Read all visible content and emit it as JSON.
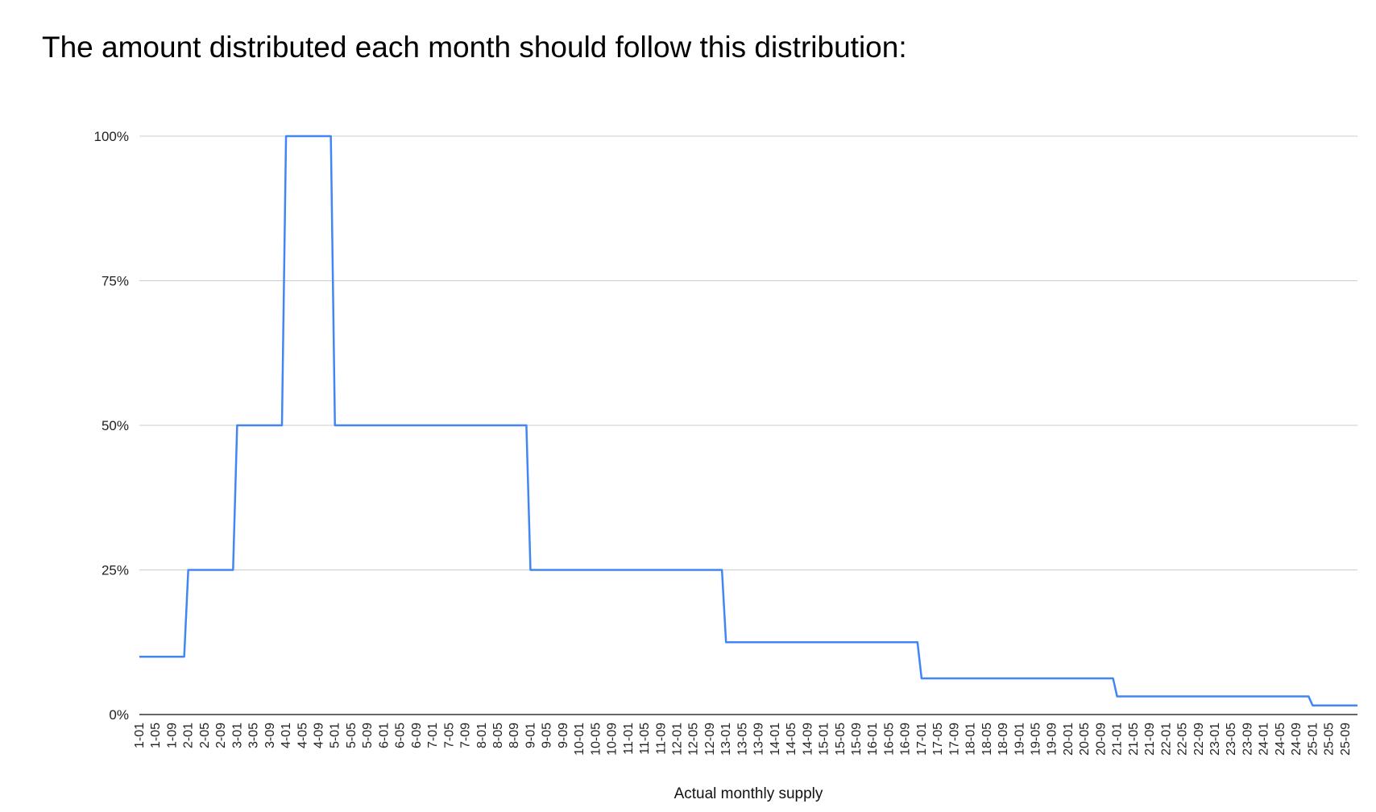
{
  "header": {
    "title": "The amount distributed each month should follow this distribution:"
  },
  "chart_data": {
    "type": "line",
    "title": "",
    "xlabel": "Actual monthly supply",
    "ylabel": "",
    "ylim": [
      0,
      1
    ],
    "y_ticks": [
      0,
      0.25,
      0.5,
      0.75,
      1
    ],
    "y_tick_labels": [
      "0%",
      "25%",
      "50%",
      "75%",
      "100%"
    ],
    "grid": true,
    "legend": "none",
    "line_color": "#4285f4",
    "x_categories": [
      "1-01",
      "1-02",
      "1-03",
      "1-04",
      "1-05",
      "1-06",
      "1-07",
      "1-08",
      "1-09",
      "1-10",
      "1-11",
      "1-12",
      "2-01",
      "2-02",
      "2-03",
      "2-04",
      "2-05",
      "2-06",
      "2-07",
      "2-08",
      "2-09",
      "2-10",
      "2-11",
      "2-12",
      "3-01",
      "3-02",
      "3-03",
      "3-04",
      "3-05",
      "3-06",
      "3-07",
      "3-08",
      "3-09",
      "3-10",
      "3-11",
      "3-12",
      "4-01",
      "4-02",
      "4-03",
      "4-04",
      "4-05",
      "4-06",
      "4-07",
      "4-08",
      "4-09",
      "4-10",
      "4-11",
      "4-12",
      "5-01",
      "5-02",
      "5-03",
      "5-04",
      "5-05",
      "5-06",
      "5-07",
      "5-08",
      "5-09",
      "5-10",
      "5-11",
      "5-12",
      "6-01",
      "6-02",
      "6-03",
      "6-04",
      "6-05",
      "6-06",
      "6-07",
      "6-08",
      "6-09",
      "6-10",
      "6-11",
      "6-12",
      "7-01",
      "7-02",
      "7-03",
      "7-04",
      "7-05",
      "7-06",
      "7-07",
      "7-08",
      "7-09",
      "7-10",
      "7-11",
      "7-12",
      "8-01",
      "8-02",
      "8-03",
      "8-04",
      "8-05",
      "8-06",
      "8-07",
      "8-08",
      "8-09",
      "8-10",
      "8-11",
      "8-12",
      "9-01",
      "9-02",
      "9-03",
      "9-04",
      "9-05",
      "9-06",
      "9-07",
      "9-08",
      "9-09",
      "9-10",
      "9-11",
      "9-12",
      "10-01",
      "10-02",
      "10-03",
      "10-04",
      "10-05",
      "10-06",
      "10-07",
      "10-08",
      "10-09",
      "10-10",
      "10-11",
      "10-12",
      "11-01",
      "11-02",
      "11-03",
      "11-04",
      "11-05",
      "11-06",
      "11-07",
      "11-08",
      "11-09",
      "11-10",
      "11-11",
      "11-12",
      "12-01",
      "12-02",
      "12-03",
      "12-04",
      "12-05",
      "12-06",
      "12-07",
      "12-08",
      "12-09",
      "12-10",
      "12-11",
      "12-12",
      "13-01",
      "13-02",
      "13-03",
      "13-04",
      "13-05",
      "13-06",
      "13-07",
      "13-08",
      "13-09",
      "13-10",
      "13-11",
      "13-12",
      "14-01",
      "14-02",
      "14-03",
      "14-04",
      "14-05",
      "14-06",
      "14-07",
      "14-08",
      "14-09",
      "14-10",
      "14-11",
      "14-12",
      "15-01",
      "15-02",
      "15-03",
      "15-04",
      "15-05",
      "15-06",
      "15-07",
      "15-08",
      "15-09",
      "15-10",
      "15-11",
      "15-12",
      "16-01",
      "16-02",
      "16-03",
      "16-04",
      "16-05",
      "16-06",
      "16-07",
      "16-08",
      "16-09",
      "16-10",
      "16-11",
      "16-12",
      "17-01",
      "17-02",
      "17-03",
      "17-04",
      "17-05",
      "17-06",
      "17-07",
      "17-08",
      "17-09",
      "17-10",
      "17-11",
      "17-12",
      "18-01",
      "18-02",
      "18-03",
      "18-04",
      "18-05",
      "18-06",
      "18-07",
      "18-08",
      "18-09",
      "18-10",
      "18-11",
      "18-12",
      "19-01",
      "19-02",
      "19-03",
      "19-04",
      "19-05",
      "19-06",
      "19-07",
      "19-08",
      "19-09",
      "19-10",
      "19-11",
      "19-12",
      "20-01",
      "20-02",
      "20-03",
      "20-04",
      "20-05",
      "20-06",
      "20-07",
      "20-08",
      "20-09",
      "20-10",
      "20-11",
      "20-12",
      "21-01",
      "21-02",
      "21-03",
      "21-04",
      "21-05",
      "21-06",
      "21-07",
      "21-08",
      "21-09",
      "21-10",
      "21-11",
      "21-12",
      "22-01",
      "22-02",
      "22-03",
      "22-04",
      "22-05",
      "22-06",
      "22-07",
      "22-08",
      "22-09",
      "22-10",
      "22-11",
      "22-12",
      "23-01",
      "23-02",
      "23-03",
      "23-04",
      "23-05",
      "23-06",
      "23-07",
      "23-08",
      "23-09",
      "23-10",
      "23-11",
      "23-12",
      "24-01",
      "24-02",
      "24-03",
      "24-04",
      "24-05",
      "24-06",
      "24-07",
      "24-08",
      "24-09",
      "24-10",
      "24-11",
      "24-12",
      "25-01",
      "25-02",
      "25-03",
      "25-04",
      "25-05",
      "25-06",
      "25-07",
      "25-08",
      "25-09",
      "25-10",
      "25-11",
      "25-12"
    ],
    "x_tick_labels": [
      "1-01",
      "1-05",
      "1-09",
      "2-01",
      "2-05",
      "2-09",
      "3-01",
      "3-05",
      "3-09",
      "4-01",
      "4-05",
      "4-09",
      "5-01",
      "5-05",
      "5-09",
      "6-01",
      "6-05",
      "6-09",
      "7-01",
      "7-05",
      "7-09",
      "8-01",
      "8-05",
      "8-09",
      "9-01",
      "9-05",
      "9-09",
      "10-01",
      "10-05",
      "10-09",
      "11-01",
      "11-05",
      "11-09",
      "12-01",
      "12-05",
      "12-09",
      "13-01",
      "13-05",
      "13-09",
      "14-01",
      "14-05",
      "14-09",
      "15-01",
      "15-05",
      "15-09",
      "16-01",
      "16-05",
      "16-09",
      "17-01",
      "17-05",
      "17-09",
      "18-01",
      "18-05",
      "18-09",
      "19-01",
      "19-05",
      "19-09",
      "20-01",
      "20-05",
      "20-09",
      "21-01",
      "21-05",
      "21-09",
      "22-01",
      "22-05",
      "22-09",
      "23-01",
      "23-05",
      "23-09",
      "24-01",
      "24-05",
      "24-09",
      "25-01",
      "25-05",
      "25-09"
    ],
    "series": [
      {
        "segments": [
          {
            "from": "1-01",
            "to": "1-12",
            "value": 0.1
          },
          {
            "from": "2-01",
            "to": "2-12",
            "value": 0.25
          },
          {
            "from": "3-01",
            "to": "3-12",
            "value": 0.5
          },
          {
            "from": "4-01",
            "to": "4-12",
            "value": 1.0
          },
          {
            "from": "5-01",
            "to": "8-12",
            "value": 0.5
          },
          {
            "from": "9-01",
            "to": "12-12",
            "value": 0.25
          },
          {
            "from": "13-01",
            "to": "16-12",
            "value": 0.125
          },
          {
            "from": "17-01",
            "to": "20-12",
            "value": 0.0625
          },
          {
            "from": "21-01",
            "to": "24-12",
            "value": 0.03125
          },
          {
            "from": "25-01",
            "to": "25-12",
            "value": 0.015625
          }
        ]
      }
    ]
  }
}
